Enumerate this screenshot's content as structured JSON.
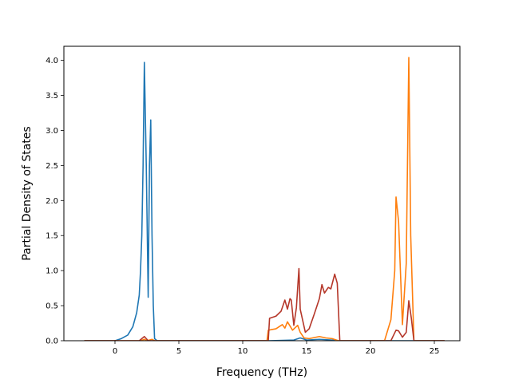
{
  "chart_data": {
    "type": "line",
    "title": "",
    "xlabel": "Frequency (THz)",
    "ylabel": "Partial Density of States",
    "xlim": [
      -4.0,
      27.0
    ],
    "ylim": [
      0.0,
      4.2
    ],
    "xticks": [
      0,
      5,
      10,
      15,
      20,
      25
    ],
    "xtick_labels": [
      "0",
      "5",
      "10",
      "15",
      "20",
      "25"
    ],
    "yticks": [
      0.0,
      0.5,
      1.0,
      1.5,
      2.0,
      2.5,
      3.0,
      3.5,
      4.0
    ],
    "ytick_labels": [
      "0.0",
      "0.5",
      "1.0",
      "1.5",
      "2.0",
      "2.5",
      "3.0",
      "3.5",
      "4.0"
    ],
    "grid": false,
    "legend": "none",
    "series": [
      {
        "color": "#1f77b4",
        "x": [
          -2.4,
          0.0,
          0.5,
          1.0,
          1.4,
          1.7,
          1.9,
          2.0,
          2.1,
          2.2,
          2.3,
          2.45,
          2.6,
          2.7,
          2.8,
          2.9,
          3.0,
          3.1,
          3.3,
          12.0,
          14.0,
          14.5,
          15.0,
          16.0,
          17.0,
          17.5,
          25.8
        ],
        "y": [
          0.0,
          0.0,
          0.03,
          0.08,
          0.2,
          0.4,
          0.65,
          1.0,
          1.5,
          2.5,
          3.97,
          2.5,
          0.62,
          2.5,
          3.15,
          1.5,
          0.5,
          0.03,
          0.0,
          0.0,
          0.01,
          0.04,
          0.01,
          0.02,
          0.01,
          0.0,
          0.0
        ]
      },
      {
        "color": "#ff7f0e",
        "x": [
          -2.4,
          2.0,
          2.3,
          2.5,
          2.9,
          3.1,
          11.9,
          12.0,
          12.6,
          13.1,
          13.3,
          13.5,
          13.9,
          14.3,
          14.5,
          14.8,
          15.2,
          16.0,
          16.5,
          17.0,
          17.5,
          21.1,
          21.6,
          21.9,
          22.0,
          22.2,
          22.5,
          22.8,
          23.0,
          23.15,
          23.4,
          25.8
        ],
        "y": [
          0.0,
          0.0,
          0.02,
          0.0,
          0.02,
          0.0,
          0.0,
          0.15,
          0.17,
          0.23,
          0.18,
          0.27,
          0.15,
          0.22,
          0.12,
          0.04,
          0.03,
          0.06,
          0.04,
          0.03,
          0.0,
          0.0,
          0.3,
          1.0,
          2.05,
          1.7,
          0.23,
          1.1,
          4.04,
          1.5,
          0.0,
          0.0
        ]
      },
      {
        "color": "#b5372a",
        "x": [
          -2.4,
          1.9,
          2.3,
          2.6,
          3.0,
          12.0,
          12.1,
          12.6,
          13.0,
          13.3,
          13.5,
          13.7,
          13.8,
          14.0,
          14.2,
          14.4,
          14.5,
          14.9,
          15.2,
          15.6,
          16.0,
          16.2,
          16.4,
          16.7,
          16.9,
          17.2,
          17.4,
          17.6,
          21.6,
          22.0,
          22.2,
          22.5,
          22.8,
          23.0,
          23.2,
          23.4,
          25.8
        ],
        "y": [
          0.0,
          0.0,
          0.06,
          0.0,
          0.0,
          0.0,
          0.32,
          0.35,
          0.42,
          0.58,
          0.45,
          0.6,
          0.58,
          0.22,
          0.47,
          1.03,
          0.45,
          0.12,
          0.17,
          0.38,
          0.6,
          0.8,
          0.68,
          0.76,
          0.74,
          0.95,
          0.82,
          0.0,
          0.0,
          0.15,
          0.14,
          0.05,
          0.12,
          0.57,
          0.32,
          0.0,
          0.0
        ]
      }
    ]
  }
}
